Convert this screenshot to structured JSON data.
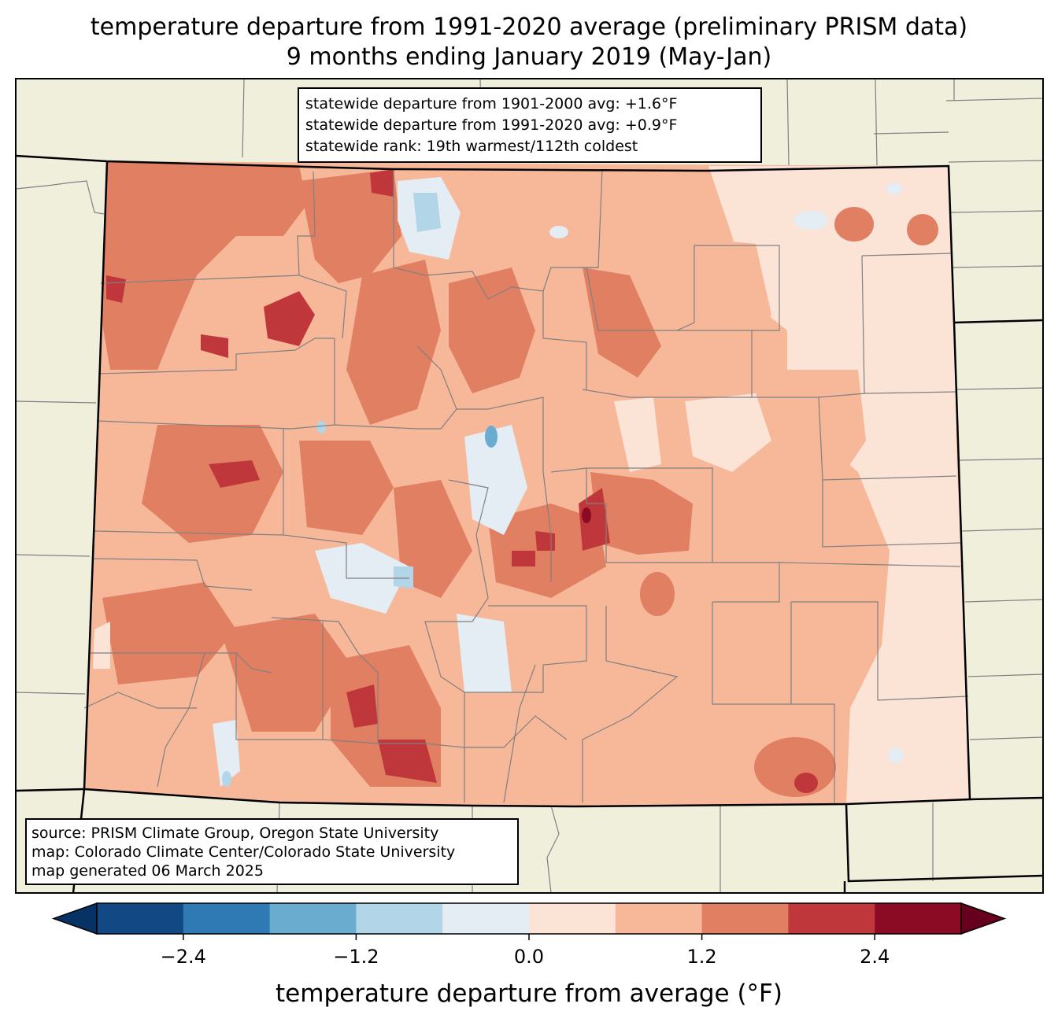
{
  "title": {
    "line1": "temperature departure from 1991-2020 average (preliminary PRISM data)",
    "line2": "9 months ending January 2019 (May-Jan)"
  },
  "stats": {
    "line1": "statewide departure from 1901-2000 avg: +1.6°F",
    "line2": "statewide departure from 1991-2020 avg: +0.9°F",
    "line3": "statewide rank: 19th warmest/112th coldest"
  },
  "source": {
    "line1": "source: PRISM Climate Group, Oregon State University",
    "line2": "map: Colorado Climate Center/Colorado State University",
    "line3": "map generated 06 March 2025"
  },
  "colorbar": {
    "label": "temperature departure from average (°F)",
    "ticks": [
      "−2.4",
      "−1.2",
      "0.0",
      "1.2",
      "2.4"
    ],
    "tick_values": [
      -2.4,
      -1.2,
      0.0,
      1.2,
      2.4
    ],
    "bin_edges": [
      -3.0,
      -2.4,
      -1.8,
      -1.2,
      -0.6,
      0.0,
      0.6,
      1.2,
      1.8,
      2.4,
      3.0
    ],
    "colors": [
      "#063264",
      "#124984",
      "#2f79b5",
      "#6aacd0",
      "#b2d5e7",
      "#e3edf3",
      "#fbe3d6",
      "#f7b799",
      "#e17f63",
      "#c0373b",
      "#8c0b24",
      "#67001f"
    ]
  },
  "map_colors": {
    "land": "#efefdc",
    "county_line": "#808080",
    "state_line": "#000000"
  }
}
